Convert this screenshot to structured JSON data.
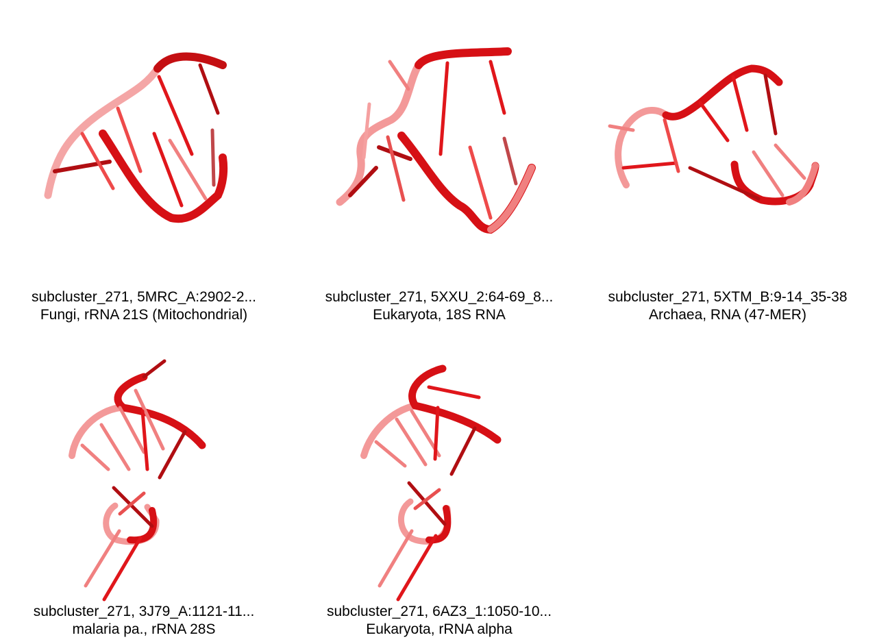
{
  "panels": [
    {
      "line1": "subcluster_271, 5MRC_A:2902-2...",
      "line2": "Fungi, rRNA 21S (Mitochondrial)"
    },
    {
      "line1": "subcluster_271, 5XXU_2:64-69_8...",
      "line2": "Eukaryota, 18S RNA"
    },
    {
      "line1": "subcluster_271, 5XTM_B:9-14_35-38",
      "line2": "Archaea, RNA (47-MER)"
    },
    {
      "line1": "subcluster_271, 3J79_A:1121-11...",
      "line2": "malaria pa., rRNA 28S"
    },
    {
      "line1": "subcluster_271, 6AZ3_1:1050-10...",
      "line2": "Eukaryota, rRNA alpha"
    }
  ],
  "colors": {
    "backbone": "#e0161b",
    "backbone_dark": "#b00e12",
    "backbone_light": "#f28c8c"
  }
}
